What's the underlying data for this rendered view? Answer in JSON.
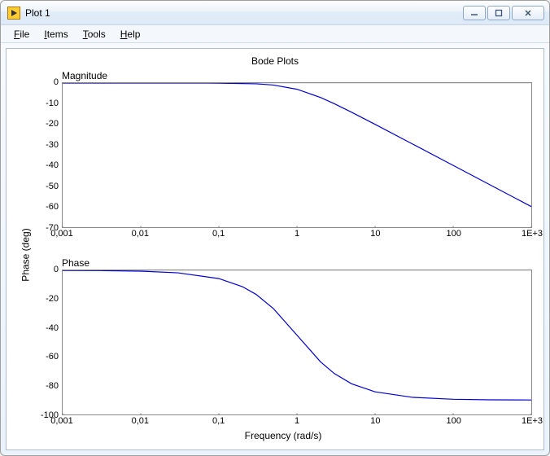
{
  "window": {
    "title": "Plot 1",
    "icon_name": "labview-plot-icon"
  },
  "menu": {
    "items": [
      {
        "label": "File",
        "accel_index": 0
      },
      {
        "label": "Items",
        "accel_index": 0
      },
      {
        "label": "Tools",
        "accel_index": 0
      },
      {
        "label": "Help",
        "accel_index": 0
      }
    ]
  },
  "figure": {
    "title": "Bode Plots",
    "xlabel": "Frequency (rad/s)",
    "ylabel": "Phase (deg)",
    "background": "#ffffff",
    "axis_color": "#888888",
    "tick_font_size": 11,
    "label_font_size": 12,
    "decimal_separator": ","
  },
  "xaxis": {
    "scale": "log",
    "min": 0.001,
    "max": 1000,
    "ticks": [
      0.001,
      0.01,
      0.1,
      1,
      10,
      100,
      1000
    ],
    "tick_labels": [
      "0,001",
      "0,01",
      "0,1",
      "1",
      "10",
      "100",
      "1E+3"
    ]
  },
  "magnitude": {
    "label": "Magnitude",
    "ymin": -70,
    "ymax": 0,
    "ytick_step": 10,
    "yticks": [
      0,
      -10,
      -20,
      -30,
      -40,
      -50,
      -60,
      -70
    ],
    "line_color": "#0000cc",
    "line_width": 1.2,
    "zero_line": true,
    "zero_line_color": "#555555",
    "data": [
      {
        "f": 0.001,
        "v": 0.0
      },
      {
        "f": 0.01,
        "v": 0.0
      },
      {
        "f": 0.1,
        "v": -0.04
      },
      {
        "f": 0.3,
        "v": -0.37
      },
      {
        "f": 0.5,
        "v": -0.97
      },
      {
        "f": 1,
        "v": -3.01
      },
      {
        "f": 2,
        "v": -6.99
      },
      {
        "f": 3,
        "v": -10.0
      },
      {
        "f": 5,
        "v": -14.15
      },
      {
        "f": 10,
        "v": -20.04
      },
      {
        "f": 30,
        "v": -29.55
      },
      {
        "f": 100,
        "v": -40.0
      },
      {
        "f": 300,
        "v": -49.54
      },
      {
        "f": 1000,
        "v": -60.0
      }
    ]
  },
  "phase": {
    "label": "Phase",
    "ymin": -100,
    "ymax": 0,
    "ytick_step": 20,
    "yticks": [
      0,
      -20,
      -40,
      -60,
      -80,
      -100
    ],
    "line_color": "#0000cc",
    "line_width": 1.2,
    "zero_line": true,
    "zero_line_color": "#555555",
    "data": [
      {
        "f": 0.001,
        "v": -0.06
      },
      {
        "f": 0.003,
        "v": -0.17
      },
      {
        "f": 0.01,
        "v": -0.57
      },
      {
        "f": 0.03,
        "v": -1.72
      },
      {
        "f": 0.1,
        "v": -5.71
      },
      {
        "f": 0.2,
        "v": -11.31
      },
      {
        "f": 0.3,
        "v": -16.7
      },
      {
        "f": 0.5,
        "v": -26.57
      },
      {
        "f": 1,
        "v": -45.0
      },
      {
        "f": 2,
        "v": -63.43
      },
      {
        "f": 3,
        "v": -71.57
      },
      {
        "f": 5,
        "v": -78.69
      },
      {
        "f": 10,
        "v": -84.29
      },
      {
        "f": 30,
        "v": -88.09
      },
      {
        "f": 100,
        "v": -89.43
      },
      {
        "f": 300,
        "v": -89.81
      },
      {
        "f": 1000,
        "v": -89.94
      }
    ]
  }
}
